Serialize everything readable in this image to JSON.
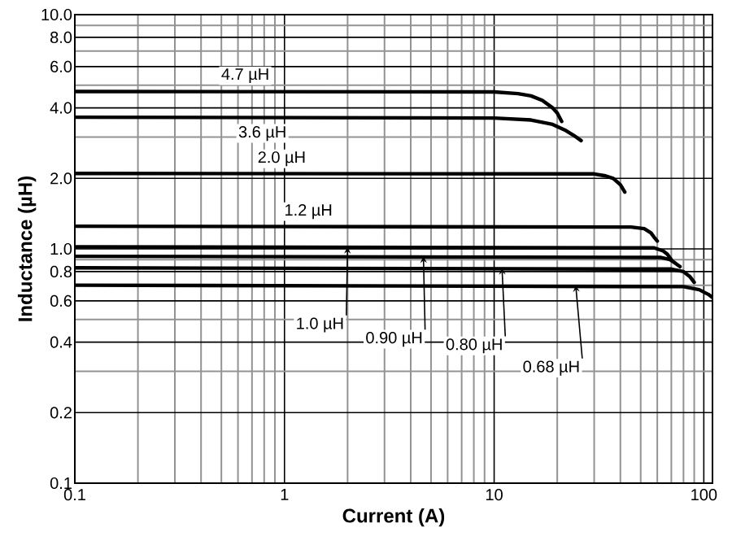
{
  "chart_data": {
    "type": "line",
    "xlabel": "Current (A)",
    "ylabel": "Inductance (µH)",
    "log": "xy",
    "grid": true,
    "line_style": "solid",
    "xlim": [
      0.1,
      110
    ],
    "ylim": [
      0.1,
      10
    ],
    "xticks": [
      0.1,
      1,
      10,
      100
    ],
    "yticks": [
      {
        "value": 0.1,
        "label": "0.1"
      },
      {
        "value": 0.2,
        "label": "0.2"
      },
      {
        "value": 0.4,
        "label": "0.4"
      },
      {
        "value": 0.6,
        "label": "0.6"
      },
      {
        "value": 0.8,
        "label": "0.8"
      },
      {
        "value": 1,
        "label": "1.0"
      },
      {
        "value": 2,
        "label": "2.0"
      },
      {
        "value": 4,
        "label": "4.0"
      },
      {
        "value": 6,
        "label": "6.0"
      },
      {
        "value": 8,
        "label": "8.0"
      },
      {
        "value": 10,
        "label": "10.0"
      }
    ],
    "series": [
      {
        "color": "#000000",
        "x": [
          0.1,
          10,
          13,
          15,
          17,
          19,
          20,
          21
        ],
        "values": [
          4.7,
          4.68,
          4.6,
          4.5,
          4.3,
          4.0,
          3.8,
          3.5
        ]
      },
      {
        "color": "#000000",
        "x": [
          0.1,
          10,
          15,
          19,
          22,
          24,
          26
        ],
        "values": [
          3.65,
          3.62,
          3.55,
          3.4,
          3.2,
          3.05,
          2.9
        ]
      },
      {
        "color": "#000000",
        "x": [
          0.1,
          30,
          34,
          37,
          40,
          42
        ],
        "values": [
          2.1,
          2.09,
          2.05,
          2.0,
          1.88,
          1.75
        ]
      },
      {
        "color": "#000000",
        "x": [
          0.1,
          45,
          52,
          56,
          58,
          60
        ],
        "values": [
          1.25,
          1.24,
          1.22,
          1.17,
          1.12,
          1.08
        ]
      },
      {
        "color": "#000000",
        "x": [
          0.1,
          58,
          64,
          67,
          70
        ],
        "values": [
          1.02,
          1.01,
          0.98,
          0.95,
          0.9
        ]
      },
      {
        "color": "#000000",
        "x": [
          0.1,
          62,
          69,
          73,
          77
        ],
        "values": [
          0.93,
          0.92,
          0.9,
          0.87,
          0.84
        ]
      },
      {
        "color": "#000000",
        "x": [
          0.1,
          70,
          80,
          86,
          90
        ],
        "values": [
          0.83,
          0.82,
          0.8,
          0.76,
          0.72
        ]
      },
      {
        "color": "#000000",
        "x": [
          0.1,
          80,
          95,
          105,
          110
        ],
        "values": [
          0.7,
          0.69,
          0.67,
          0.64,
          0.62
        ]
      }
    ],
    "annotations": [
      {
        "text": "4.7 µH",
        "x": 0.65,
        "y": 4.75
      },
      {
        "text": "3.6 µH",
        "x": 0.785,
        "y": 3.65
      },
      {
        "text": "2.0 µH",
        "x": 0.97,
        "y": 2.1
      },
      {
        "text": "1.2 µH",
        "x": 1.3,
        "y": 1.25
      },
      {
        "text": "1.0 µH",
        "x": 2,
        "y": 1.02
      },
      {
        "text": "0.90 µH",
        "x": 4.6,
        "y": 0.93
      },
      {
        "text": "0.80 µH",
        "x": 10.9,
        "y": 0.83
      },
      {
        "text": "0.68 µH",
        "x": 24.5,
        "y": 0.7
      }
    ]
  }
}
